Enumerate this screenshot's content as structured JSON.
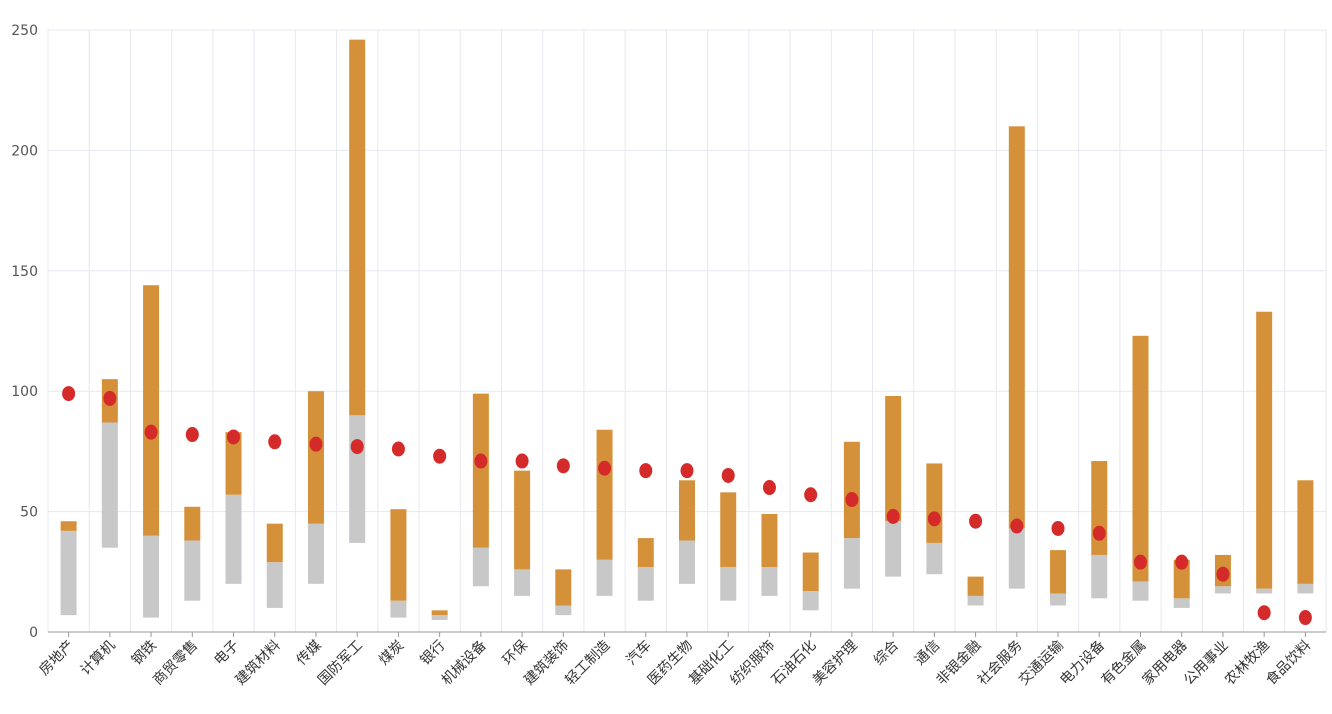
{
  "chart_data": {
    "type": "bar",
    "grid": true,
    "ylim": [
      0,
      250
    ],
    "y_ticks": [
      "0",
      "50",
      "100",
      "150",
      "200",
      "250"
    ],
    "y_tick_values": [
      0,
      50,
      100,
      150,
      200,
      250
    ],
    "colors": {
      "gray_bar": "#c8c8c8",
      "orange_bar": "#d4913a",
      "marker": "#d42a2a",
      "grid": "#e6e8f0",
      "axis": "#999999"
    },
    "categories": [
      "房地产",
      "计算机",
      "钢铁",
      "商贸零售",
      "电子",
      "建筑材料",
      "传媒",
      "国防军工",
      "煤炭",
      "银行",
      "机械设备",
      "环保",
      "建筑装饰",
      "轻工制造",
      "汽车",
      "医药生物",
      "基础化工",
      "纺织服饰",
      "石油石化",
      "美容护理",
      "综合",
      "通信",
      "非银金融",
      "社会服务",
      "交通运输",
      "电力设备",
      "有色金属",
      "家用电器",
      "公用事业",
      "农林牧渔",
      "食品饮料"
    ],
    "series": [
      {
        "kind": "range-bar-lower",
        "low": [
          7,
          35,
          6,
          13,
          20,
          10,
          20,
          37,
          6,
          5,
          19,
          15,
          7,
          15,
          13,
          20,
          13,
          15,
          9,
          18,
          23,
          24,
          11,
          18,
          11,
          14,
          13,
          10,
          16,
          16,
          16
        ],
        "high": [
          42,
          87,
          40,
          38,
          57,
          29,
          45,
          90,
          13,
          7,
          35,
          26,
          11,
          30,
          27,
          38,
          27,
          27,
          17,
          39,
          46,
          37,
          15,
          43,
          16,
          32,
          21,
          14,
          19,
          18,
          20
        ]
      },
      {
        "kind": "range-bar-upper",
        "low": [
          42,
          87,
          40,
          38,
          57,
          29,
          45,
          90,
          13,
          7,
          35,
          26,
          11,
          30,
          27,
          38,
          27,
          27,
          17,
          39,
          46,
          37,
          15,
          43,
          16,
          32,
          21,
          14,
          19,
          18,
          20
        ],
        "high": [
          46,
          105,
          144,
          52,
          83,
          45,
          100,
          246,
          51,
          9,
          99,
          67,
          26,
          84,
          39,
          63,
          58,
          49,
          33,
          79,
          98,
          70,
          23,
          210,
          34,
          71,
          123,
          30,
          32,
          133,
          63
        ]
      },
      {
        "kind": "marker",
        "values": [
          99,
          97,
          83,
          82,
          81,
          79,
          78,
          77,
          76,
          73,
          71,
          71,
          69,
          68,
          67,
          67,
          65,
          60,
          57,
          55,
          48,
          47,
          46,
          44,
          43,
          41,
          29,
          29,
          24,
          8,
          6
        ]
      }
    ]
  }
}
